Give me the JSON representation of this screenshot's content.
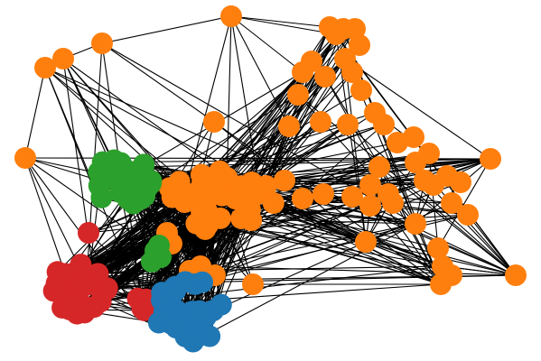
{
  "colors": {
    "background": "#ffffff",
    "edge": "#000000",
    "orange": "#ff7f0e",
    "green": "#2ca02c",
    "red": "#d62728",
    "blue": "#1f77b4"
  },
  "graph": {
    "type": "network-diagram",
    "groups": [
      {
        "id": "orange",
        "color_key": "orange"
      },
      {
        "id": "green",
        "color_key": "green"
      },
      {
        "id": "red",
        "color_key": "red"
      },
      {
        "id": "blue",
        "color_key": "blue"
      }
    ],
    "labels_shown": false
  }
}
